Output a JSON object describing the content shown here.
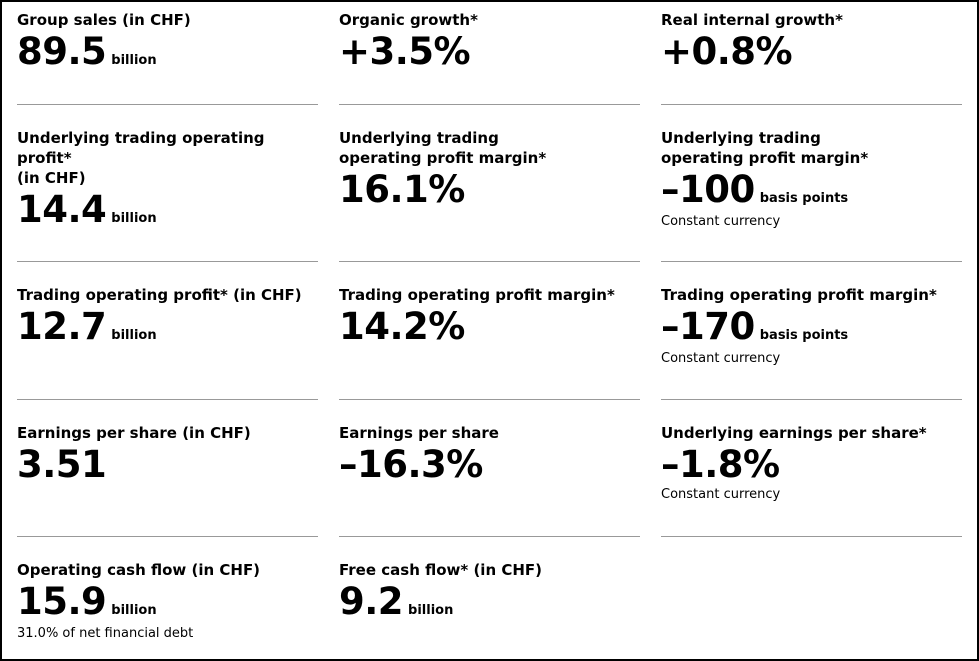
{
  "rows": [
    [
      {
        "label_lines": [
          "Group sales (in CHF)"
        ],
        "value": "89.5",
        "unit": "billion"
      },
      {
        "label_lines": [
          "Organic growth*"
        ],
        "value": "+3.5%"
      },
      {
        "label_lines": [
          "Real internal growth*"
        ],
        "value": "+0.8%"
      }
    ],
    [
      {
        "label_lines": [
          "Underlying trading operating profit*",
          "(in CHF)"
        ],
        "value": "14.4",
        "unit": "billion"
      },
      {
        "label_lines": [
          "Underlying trading",
          "operating profit margin*"
        ],
        "value": "16.1%"
      },
      {
        "label_lines": [
          "Underlying trading",
          "operating profit margin*"
        ],
        "value": "–100",
        "unit": "basis points",
        "note": "Constant currency"
      }
    ],
    [
      {
        "label_lines": [
          "Trading operating profit* (in CHF)"
        ],
        "value": "12.7",
        "unit": "billion"
      },
      {
        "label_lines": [
          "Trading operating profit margin*"
        ],
        "value": "14.2%"
      },
      {
        "label_lines": [
          "Trading operating profit margin*"
        ],
        "value": "–170",
        "unit": "basis points",
        "note": "Constant currency"
      }
    ],
    [
      {
        "label_lines": [
          "Earnings per share (in CHF)"
        ],
        "value": "3.51"
      },
      {
        "label_lines": [
          "Earnings per share"
        ],
        "value": "–16.3%"
      },
      {
        "label_lines": [
          "Underlying earnings per share*"
        ],
        "value": "–1.8%",
        "note": "Constant currency"
      }
    ],
    [
      {
        "label_lines": [
          "Operating cash flow (in CHF)"
        ],
        "value": "15.9",
        "unit": "billion",
        "note": "31.0% of net financial debt"
      },
      {
        "label_lines": [
          "Free cash flow* (in CHF)"
        ],
        "value": "9.2",
        "unit": "billion"
      }
    ]
  ]
}
